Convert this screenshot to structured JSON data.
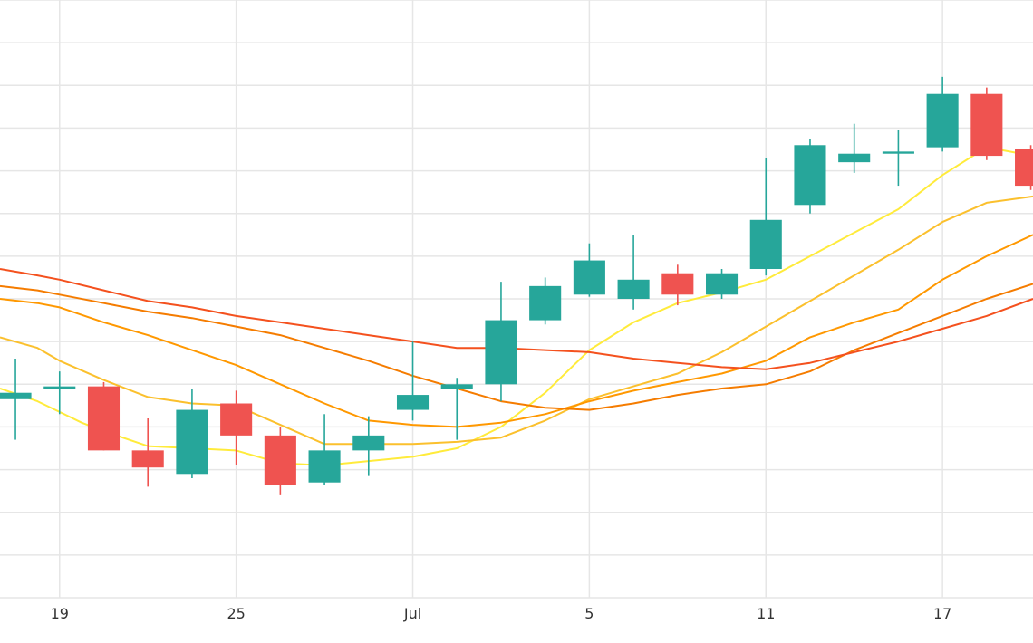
{
  "chart_data": {
    "type": "candlestick",
    "title": "",
    "xlabel": "",
    "ylabel": "",
    "grid": true,
    "legend": "none",
    "colors": {
      "up": "#26a69a",
      "down": "#ef5350",
      "grid": "#e6e6e6",
      "ma": [
        "#ffeb3b",
        "#fbc02d",
        "#ff9800",
        "#f57c00",
        "#f4511e"
      ]
    },
    "ylim": [
      0,
      14
    ],
    "x_ticks": [
      {
        "x": 1,
        "label": "19"
      },
      {
        "x": 5,
        "label": "25"
      },
      {
        "x": 9,
        "label": "Jul"
      },
      {
        "x": 13,
        "label": "5"
      },
      {
        "x": 17,
        "label": "11"
      },
      {
        "x": 21,
        "label": "17"
      }
    ],
    "xlim": [
      -0.35,
      23.05
    ],
    "candles": [
      {
        "x": 0,
        "open": 4.65,
        "close": 4.8,
        "high": 5.6,
        "low": 3.7
      },
      {
        "x": 1,
        "open": 4.9,
        "close": 4.95,
        "high": 5.3,
        "low": 4.3
      },
      {
        "x": 2,
        "open": 4.95,
        "close": 3.45,
        "high": 5.05,
        "low": 3.45
      },
      {
        "x": 3,
        "open": 3.45,
        "close": 3.05,
        "high": 4.2,
        "low": 2.6
      },
      {
        "x": 4,
        "open": 2.9,
        "close": 4.4,
        "high": 4.9,
        "low": 2.8
      },
      {
        "x": 5,
        "open": 4.55,
        "close": 3.8,
        "high": 4.85,
        "low": 3.1
      },
      {
        "x": 6,
        "open": 3.8,
        "close": 2.65,
        "high": 4.0,
        "low": 2.4
      },
      {
        "x": 7,
        "open": 2.7,
        "close": 3.45,
        "high": 4.3,
        "low": 2.65
      },
      {
        "x": 8,
        "open": 3.45,
        "close": 3.8,
        "high": 4.25,
        "low": 2.85
      },
      {
        "x": 9,
        "open": 4.4,
        "close": 4.75,
        "high": 6.0,
        "low": 4.15
      },
      {
        "x": 10,
        "open": 4.9,
        "close": 5.0,
        "high": 5.15,
        "low": 3.7
      },
      {
        "x": 11,
        "open": 5.0,
        "close": 6.5,
        "high": 7.4,
        "low": 4.6
      },
      {
        "x": 12,
        "open": 6.5,
        "close": 7.3,
        "high": 7.5,
        "low": 6.4
      },
      {
        "x": 13,
        "open": 7.1,
        "close": 7.9,
        "high": 8.3,
        "low": 7.05
      },
      {
        "x": 14,
        "open": 7.0,
        "close": 7.45,
        "high": 8.5,
        "low": 6.75
      },
      {
        "x": 15,
        "open": 7.6,
        "close": 7.1,
        "high": 7.8,
        "low": 6.85
      },
      {
        "x": 16,
        "open": 7.1,
        "close": 7.6,
        "high": 7.7,
        "low": 7.0
      },
      {
        "x": 17,
        "open": 7.7,
        "close": 8.85,
        "high": 10.3,
        "low": 7.55
      },
      {
        "x": 18,
        "open": 9.2,
        "close": 10.6,
        "high": 10.75,
        "low": 9.0
      },
      {
        "x": 19,
        "open": 10.2,
        "close": 10.4,
        "high": 11.1,
        "low": 9.95
      },
      {
        "x": 20,
        "open": 10.4,
        "close": 10.45,
        "high": 10.95,
        "low": 9.65
      },
      {
        "x": 21,
        "open": 10.55,
        "close": 11.8,
        "high": 12.2,
        "low": 10.45
      },
      {
        "x": 22,
        "open": 11.8,
        "close": 10.35,
        "high": 11.95,
        "low": 10.25
      },
      {
        "x": 23,
        "open": 10.5,
        "close": 9.65,
        "high": 10.6,
        "low": 9.55
      }
    ],
    "moving_averages": [
      {
        "color": "#ffeb3b",
        "points": [
          [
            -0.35,
            4.9
          ],
          [
            0.5,
            4.6
          ],
          [
            1,
            4.35
          ],
          [
            1.5,
            4.1
          ],
          [
            2,
            3.9
          ],
          [
            3,
            3.55
          ],
          [
            4,
            3.5
          ],
          [
            5,
            3.45
          ],
          [
            5.5,
            3.3
          ],
          [
            6,
            3.15
          ],
          [
            7,
            3.1
          ],
          [
            8,
            3.2
          ],
          [
            9,
            3.3
          ],
          [
            10,
            3.5
          ],
          [
            11,
            4.0
          ],
          [
            12,
            4.8
          ],
          [
            13,
            5.8
          ],
          [
            14,
            6.45
          ],
          [
            15,
            6.9
          ],
          [
            16,
            7.15
          ],
          [
            17,
            7.45
          ],
          [
            18,
            8.0
          ],
          [
            19,
            8.55
          ],
          [
            20,
            9.1
          ],
          [
            21,
            9.9
          ],
          [
            22,
            10.55
          ],
          [
            23.05,
            10.35
          ]
        ]
      },
      {
        "color": "#fbc02d",
        "points": [
          [
            -0.35,
            6.1
          ],
          [
            0.5,
            5.85
          ],
          [
            1,
            5.55
          ],
          [
            2,
            5.1
          ],
          [
            3,
            4.7
          ],
          [
            4,
            4.55
          ],
          [
            5,
            4.5
          ],
          [
            6,
            4.05
          ],
          [
            7,
            3.6
          ],
          [
            8,
            3.6
          ],
          [
            9,
            3.6
          ],
          [
            10,
            3.65
          ],
          [
            11,
            3.75
          ],
          [
            12,
            4.15
          ],
          [
            13,
            4.65
          ],
          [
            14,
            4.95
          ],
          [
            15,
            5.25
          ],
          [
            16,
            5.75
          ],
          [
            17,
            6.35
          ],
          [
            18,
            6.95
          ],
          [
            19,
            7.55
          ],
          [
            20,
            8.15
          ],
          [
            21,
            8.8
          ],
          [
            22,
            9.25
          ],
          [
            23.05,
            9.4
          ]
        ]
      },
      {
        "color": "#ff9800",
        "points": [
          [
            -0.35,
            7.0
          ],
          [
            0.5,
            6.9
          ],
          [
            1,
            6.8
          ],
          [
            2,
            6.45
          ],
          [
            3,
            6.15
          ],
          [
            4,
            5.8
          ],
          [
            5,
            5.45
          ],
          [
            6,
            5.0
          ],
          [
            7,
            4.55
          ],
          [
            8,
            4.15
          ],
          [
            9,
            4.05
          ],
          [
            10,
            4.0
          ],
          [
            11,
            4.1
          ],
          [
            12,
            4.3
          ],
          [
            13,
            4.6
          ],
          [
            14,
            4.85
          ],
          [
            15,
            5.05
          ],
          [
            16,
            5.25
          ],
          [
            17,
            5.55
          ],
          [
            18,
            6.1
          ],
          [
            19,
            6.45
          ],
          [
            20,
            6.75
          ],
          [
            21,
            7.45
          ],
          [
            22,
            8.0
          ],
          [
            23.05,
            8.5
          ]
        ]
      },
      {
        "color": "#f57c00",
        "points": [
          [
            -0.35,
            7.3
          ],
          [
            0.5,
            7.2
          ],
          [
            1,
            7.1
          ],
          [
            2,
            6.9
          ],
          [
            3,
            6.7
          ],
          [
            4,
            6.55
          ],
          [
            5,
            6.35
          ],
          [
            6,
            6.15
          ],
          [
            7,
            5.85
          ],
          [
            8,
            5.55
          ],
          [
            9,
            5.2
          ],
          [
            10,
            4.9
          ],
          [
            11,
            4.6
          ],
          [
            12,
            4.45
          ],
          [
            13,
            4.4
          ],
          [
            14,
            4.55
          ],
          [
            15,
            4.75
          ],
          [
            16,
            4.9
          ],
          [
            17,
            5.0
          ],
          [
            18,
            5.3
          ],
          [
            19,
            5.8
          ],
          [
            20,
            6.2
          ],
          [
            21,
            6.6
          ],
          [
            22,
            7.0
          ],
          [
            23.05,
            7.35
          ]
        ]
      },
      {
        "color": "#f4511e",
        "points": [
          [
            -0.35,
            7.7
          ],
          [
            0.5,
            7.55
          ],
          [
            1,
            7.45
          ],
          [
            2,
            7.2
          ],
          [
            3,
            6.95
          ],
          [
            4,
            6.8
          ],
          [
            5,
            6.6
          ],
          [
            6,
            6.45
          ],
          [
            7,
            6.3
          ],
          [
            8,
            6.15
          ],
          [
            9,
            6.0
          ],
          [
            10,
            5.85
          ],
          [
            11,
            5.85
          ],
          [
            12,
            5.8
          ],
          [
            13,
            5.75
          ],
          [
            14,
            5.6
          ],
          [
            15,
            5.5
          ],
          [
            16,
            5.4
          ],
          [
            17,
            5.35
          ],
          [
            18,
            5.5
          ],
          [
            19,
            5.75
          ],
          [
            20,
            6.0
          ],
          [
            21,
            6.3
          ],
          [
            22,
            6.6
          ],
          [
            23.05,
            7.0
          ]
        ]
      }
    ]
  }
}
